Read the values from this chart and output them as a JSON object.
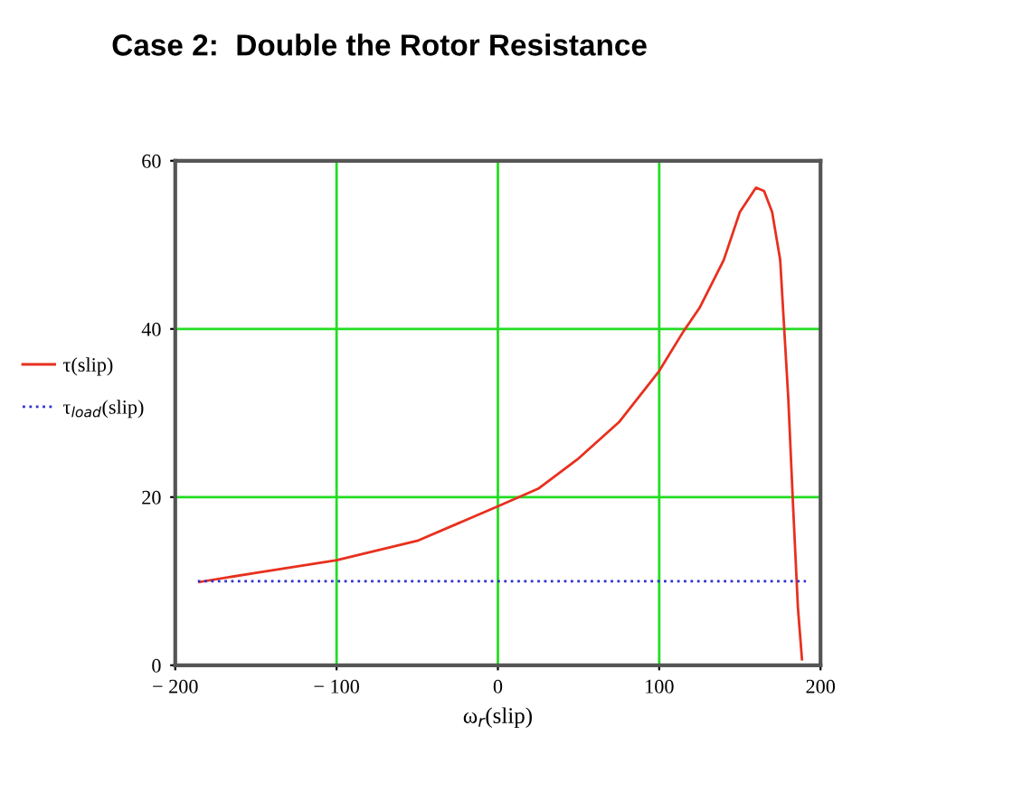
{
  "chart_data": {
    "type": "line",
    "title": "Case 2:  Double the Rotor Resistance",
    "xlabel": "ω$_{r}$(slip)",
    "xlim": [
      -200,
      200
    ],
    "ylim": [
      0,
      60
    ],
    "xticks": [
      {
        "value": -200,
        "label": "− 200"
      },
      {
        "value": -100,
        "label": "− 100"
      },
      0,
      100,
      200
    ],
    "yticks": [
      0,
      20,
      40,
      60
    ],
    "grid": true,
    "legend": "left",
    "marker": "none",
    "series": [
      {
        "name": "τ(slip)",
        "color": "#e8301e",
        "line_style": "solid",
        "x": [
          -185,
          -150,
          -100,
          -50,
          0,
          25,
          50,
          75,
          100,
          115,
          125,
          140,
          150,
          160,
          165,
          170,
          175,
          180,
          183,
          186,
          188.5
        ],
        "values": [
          9.9,
          11.0,
          12.5,
          14.8,
          18.9,
          21,
          24.6,
          28.9,
          35,
          39.7,
          42.5,
          48.2,
          53.9,
          56.8,
          56.4,
          53.9,
          48.2,
          31.8,
          18.9,
          6.8,
          0.7
        ]
      },
      {
        "name": "τ$_{load}$(slip)",
        "color": "#3030d0",
        "line_style": "dotted",
        "x": [
          -186,
          191
        ],
        "values": [
          10,
          10
        ]
      }
    ]
  }
}
